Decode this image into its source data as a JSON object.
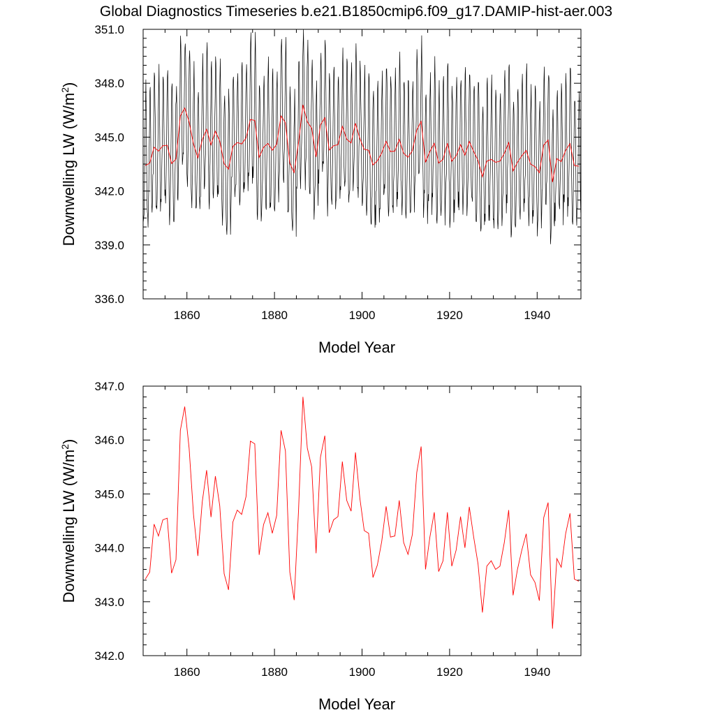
{
  "figure_title": "Global Diagnostics Timeseries b.e21.B1850cmip6.f09_g17.DAMIP-hist-aer.003",
  "colors": {
    "monthly": "#000000",
    "annual": "#ff0000"
  },
  "chart_data": [
    {
      "type": "line",
      "title": "",
      "xlabel": "Model Year",
      "ylabel": "Downwelling LW (W/m²)",
      "ylabel_parts": {
        "main": "Downwelling LW (W/m",
        "sup": "2",
        "tail": ")"
      },
      "xlim": [
        1850,
        1950
      ],
      "ylim": [
        336.0,
        351.0
      ],
      "x_ticks": [
        1860,
        1880,
        1900,
        1920,
        1940
      ],
      "x_tick_labels": [
        "1860",
        "1880",
        "1900",
        "1920",
        "1940"
      ],
      "y_ticks": [
        336,
        339,
        342,
        345,
        348,
        351
      ],
      "y_tick_labels": [
        "336.0",
        "339.0",
        "342.0",
        "345.0",
        "348.0",
        "351.0"
      ],
      "series": [
        {
          "kind": "monthly",
          "color": "#000000",
          "x_start": 1850.042,
          "x_step": 0.0833333,
          "seasonal_cycle_offsets": [
            -2.7,
            -2.6,
            -1.9,
            -0.9,
            0.5,
            2.1,
            3.4,
            3.7,
            2.4,
            0.6,
            -1.4,
            -2.6
          ],
          "annual_means_ref": "annual"
        },
        {
          "kind": "annual",
          "color": "#ff0000",
          "x": [
            1850.5,
            1851.5,
            1852.5,
            1853.5,
            1854.5,
            1855.5,
            1856.5,
            1857.5,
            1858.5,
            1859.5,
            1860.5,
            1861.5,
            1862.5,
            1863.5,
            1864.5,
            1865.5,
            1866.5,
            1867.5,
            1868.5,
            1869.5,
            1870.5,
            1871.5,
            1872.5,
            1873.5,
            1874.5,
            1875.5,
            1876.5,
            1877.5,
            1878.5,
            1879.5,
            1880.5,
            1881.5,
            1882.5,
            1883.5,
            1884.5,
            1885.5,
            1886.5,
            1887.5,
            1888.5,
            1889.5,
            1890.5,
            1891.5,
            1892.5,
            1893.5,
            1894.5,
            1895.5,
            1896.5,
            1897.5,
            1898.5,
            1899.5,
            1900.5,
            1901.5,
            1902.5,
            1903.5,
            1904.5,
            1905.5,
            1906.5,
            1907.5,
            1908.5,
            1909.5,
            1910.5,
            1911.5,
            1912.5,
            1913.5,
            1914.5,
            1915.5,
            1916.5,
            1917.5,
            1918.5,
            1919.5,
            1920.5,
            1921.5,
            1922.5,
            1923.5,
            1924.5,
            1925.5,
            1926.5,
            1927.5,
            1928.5,
            1929.5,
            1930.5,
            1931.5,
            1932.5,
            1933.5,
            1934.5,
            1935.5,
            1936.5,
            1937.5,
            1938.5,
            1939.5,
            1940.5,
            1941.5,
            1942.5,
            1943.5,
            1944.5,
            1945.5,
            1946.5,
            1947.5,
            1948.5,
            1949.5
          ],
          "values": "annual"
        }
      ]
    },
    {
      "type": "line",
      "title": "",
      "xlabel": "Model Year",
      "ylabel": "Downwelling LW (W/m²)",
      "ylabel_parts": {
        "main": "Downwelling LW (W/m",
        "sup": "2",
        "tail": ")"
      },
      "xlim": [
        1850,
        1950
      ],
      "ylim": [
        342.0,
        347.0
      ],
      "x_ticks": [
        1860,
        1880,
        1900,
        1920,
        1940
      ],
      "x_tick_labels": [
        "1860",
        "1880",
        "1900",
        "1920",
        "1940"
      ],
      "y_ticks": [
        342,
        343,
        344,
        345,
        346,
        347
      ],
      "y_tick_labels": [
        "342.0",
        "343.0",
        "344.0",
        "345.0",
        "346.0",
        "347.0"
      ],
      "series": [
        {
          "kind": "annual",
          "color": "#ff0000",
          "x": [
            1850.5,
            1851.5,
            1852.5,
            1853.5,
            1854.5,
            1855.5,
            1856.5,
            1857.5,
            1858.5,
            1859.5,
            1860.5,
            1861.5,
            1862.5,
            1863.5,
            1864.5,
            1865.5,
            1866.5,
            1867.5,
            1868.5,
            1869.5,
            1870.5,
            1871.5,
            1872.5,
            1873.5,
            1874.5,
            1875.5,
            1876.5,
            1877.5,
            1878.5,
            1879.5,
            1880.5,
            1881.5,
            1882.5,
            1883.5,
            1884.5,
            1885.5,
            1886.5,
            1887.5,
            1888.5,
            1889.5,
            1890.5,
            1891.5,
            1892.5,
            1893.5,
            1894.5,
            1895.5,
            1896.5,
            1897.5,
            1898.5,
            1899.5,
            1900.5,
            1901.5,
            1902.5,
            1903.5,
            1904.5,
            1905.5,
            1906.5,
            1907.5,
            1908.5,
            1909.5,
            1910.5,
            1911.5,
            1912.5,
            1913.5,
            1914.5,
            1915.5,
            1916.5,
            1917.5,
            1918.5,
            1919.5,
            1920.5,
            1921.5,
            1922.5,
            1923.5,
            1924.5,
            1925.5,
            1926.5,
            1927.5,
            1928.5,
            1929.5,
            1930.5,
            1931.5,
            1932.5,
            1933.5,
            1934.5,
            1935.5,
            1936.5,
            1937.5,
            1938.5,
            1939.5,
            1940.5,
            1941.5,
            1942.5,
            1943.5,
            1944.5,
            1945.5,
            1946.5,
            1947.5,
            1948.5,
            1949.5
          ],
          "values": [
            343.42,
            343.55,
            344.44,
            344.22,
            344.52,
            344.55,
            343.53,
            343.78,
            346.18,
            346.62,
            345.85,
            344.62,
            343.85,
            344.85,
            345.44,
            344.57,
            345.33,
            344.78,
            343.52,
            343.22,
            344.48,
            344.7,
            344.62,
            344.95,
            345.98,
            345.93,
            343.87,
            344.43,
            344.65,
            344.27,
            344.6,
            346.18,
            345.8,
            343.55,
            343.03,
            344.7,
            346.8,
            345.85,
            345.5,
            343.9,
            345.68,
            346.08,
            344.28,
            344.52,
            344.58,
            345.6,
            344.88,
            344.68,
            345.77,
            344.92,
            344.32,
            344.27,
            343.45,
            343.68,
            344.12,
            344.77,
            344.2,
            344.22,
            344.88,
            344.1,
            343.88,
            344.25,
            345.4,
            345.88,
            343.6,
            344.2,
            344.66,
            343.56,
            343.76,
            344.66,
            343.66,
            343.96,
            344.58,
            344.0,
            344.76,
            344.2,
            343.7,
            342.8,
            343.66,
            343.76,
            343.6,
            343.66,
            344.1,
            344.7,
            343.12,
            343.6,
            343.96,
            344.26,
            343.5,
            343.36,
            343.02,
            344.56,
            344.84,
            342.5,
            343.8,
            343.64,
            344.26,
            344.64,
            343.42,
            343.38
          ]
        }
      ]
    }
  ]
}
